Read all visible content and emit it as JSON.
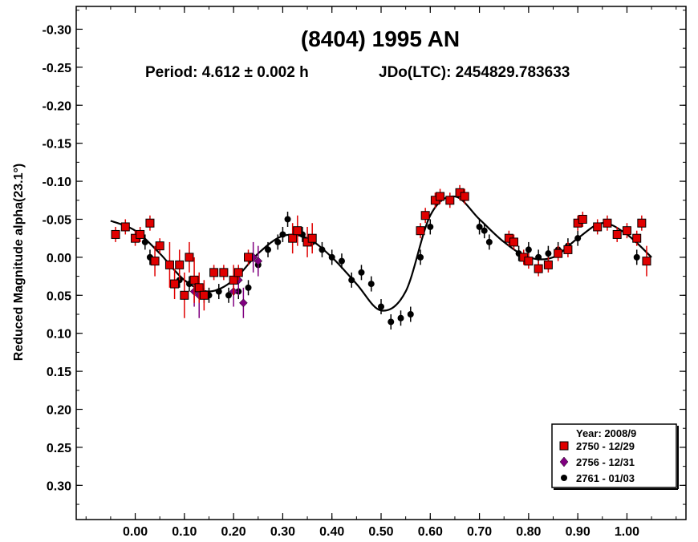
{
  "chart_data": {
    "type": "scatter",
    "title": "(8404) 1995 AN",
    "subtitle_period": "Period: 4.612 ± 0.002 h",
    "subtitle_epoch": "JDo(LTC): 2454829.783633",
    "ylabel": "Reduced Magnitude alpha(23.1°)",
    "xlabel": "",
    "xlim": [
      -0.12,
      1.12
    ],
    "ylim": [
      -0.33,
      0.345
    ],
    "y_inverted": true,
    "x_ticks": [
      "0.00",
      "0.10",
      "0.20",
      "0.30",
      "0.40",
      "0.50",
      "0.60",
      "0.70",
      "0.80",
      "0.90",
      "1.00"
    ],
    "x_tick_values": [
      0.0,
      0.1,
      0.2,
      0.3,
      0.4,
      0.5,
      0.6,
      0.7,
      0.8,
      0.9,
      1.0
    ],
    "y_ticks": [
      "-0.30",
      "-0.25",
      "-0.20",
      "-0.15",
      "-0.10",
      "-0.05",
      "0.00",
      "0.05",
      "0.10",
      "0.15",
      "0.20",
      "0.25",
      "0.30"
    ],
    "y_tick_values": [
      -0.3,
      -0.25,
      -0.2,
      -0.15,
      -0.1,
      -0.05,
      0.0,
      0.05,
      0.1,
      0.15,
      0.2,
      0.25,
      0.3
    ],
    "grid": false,
    "legend": {
      "position": "bottom-right",
      "title": "Year: 2008/9",
      "entries": [
        "2750 - 12/29",
        "2756 - 12/31",
        "2761 - 01/03"
      ]
    },
    "colors": {
      "s2750": "#e00000",
      "s2756": "#800080",
      "s2761": "#000000",
      "curve": "#000000"
    },
    "series": [
      {
        "name": "2750 - 12/29",
        "marker": "square",
        "x": [
          -0.04,
          -0.02,
          0.0,
          0.01,
          0.03,
          0.04,
          0.05,
          0.07,
          0.08,
          0.09,
          0.1,
          0.11,
          0.12,
          0.13,
          0.14,
          0.16,
          0.18,
          0.2,
          0.21,
          0.23,
          0.32,
          0.33,
          0.35,
          0.36,
          0.58,
          0.59,
          0.61,
          0.62,
          0.64,
          0.66,
          0.67,
          0.76,
          0.77,
          0.79,
          0.8,
          0.82,
          0.84,
          0.86,
          0.88,
          0.9,
          0.91,
          0.94,
          0.96,
          0.98,
          1.0,
          1.02,
          1.03,
          1.04
        ],
        "y": [
          -0.03,
          -0.04,
          -0.025,
          -0.03,
          -0.045,
          0.005,
          -0.015,
          0.01,
          0.035,
          0.01,
          0.05,
          0.0,
          0.03,
          0.04,
          0.05,
          0.02,
          0.02,
          0.03,
          0.02,
          0.0,
          -0.025,
          -0.035,
          -0.02,
          -0.025,
          -0.035,
          -0.055,
          -0.075,
          -0.08,
          -0.075,
          -0.085,
          -0.08,
          -0.025,
          -0.02,
          0.0,
          0.005,
          0.015,
          0.01,
          -0.005,
          -0.01,
          -0.045,
          -0.05,
          -0.04,
          -0.045,
          -0.03,
          -0.035,
          -0.025,
          -0.045,
          0.005
        ],
        "err": [
          0.01,
          0.01,
          0.01,
          0.01,
          0.01,
          0.02,
          0.01,
          0.03,
          0.02,
          0.02,
          0.03,
          0.02,
          0.03,
          0.02,
          0.02,
          0.01,
          0.01,
          0.02,
          0.01,
          0.01,
          0.02,
          0.02,
          0.02,
          0.02,
          0.01,
          0.01,
          0.01,
          0.01,
          0.01,
          0.01,
          0.01,
          0.01,
          0.01,
          0.01,
          0.01,
          0.01,
          0.01,
          0.01,
          0.01,
          0.01,
          0.01,
          0.01,
          0.01,
          0.01,
          0.01,
          0.01,
          0.01,
          0.02
        ]
      },
      {
        "name": "2756 - 12/31",
        "marker": "diamond",
        "x": [
          0.12,
          0.13,
          0.2,
          0.21,
          0.22,
          0.24,
          0.25
        ],
        "y": [
          0.045,
          0.05,
          0.045,
          0.03,
          0.06,
          0.0,
          0.005
        ],
        "err": [
          0.02,
          0.03,
          0.02,
          0.02,
          0.02,
          0.02,
          0.02
        ]
      },
      {
        "name": "2761 - 01/03",
        "marker": "circle",
        "x": [
          0.02,
          0.03,
          0.09,
          0.11,
          0.13,
          0.14,
          0.15,
          0.17,
          0.19,
          0.21,
          0.23,
          0.25,
          0.27,
          0.29,
          0.3,
          0.31,
          0.34,
          0.36,
          0.38,
          0.4,
          0.42,
          0.44,
          0.46,
          0.48,
          0.5,
          0.52,
          0.54,
          0.56,
          0.58,
          0.6,
          0.7,
          0.71,
          0.72,
          0.78,
          0.8,
          0.82,
          0.84,
          0.86,
          0.88,
          0.9,
          1.02
        ],
        "y": [
          -0.02,
          0.0,
          0.03,
          0.035,
          0.04,
          0.05,
          0.05,
          0.045,
          0.05,
          0.045,
          0.04,
          0.01,
          -0.01,
          -0.02,
          -0.03,
          -0.05,
          -0.03,
          -0.02,
          -0.01,
          0.0,
          0.005,
          0.03,
          0.02,
          0.035,
          0.065,
          0.085,
          0.08,
          0.075,
          0.0,
          -0.04,
          -0.04,
          -0.035,
          -0.02,
          -0.005,
          -0.01,
          0.0,
          -0.005,
          -0.01,
          -0.015,
          -0.025,
          0.0
        ],
        "err": [
          0.01,
          0.01,
          0.01,
          0.01,
          0.01,
          0.01,
          0.01,
          0.01,
          0.01,
          0.01,
          0.01,
          0.01,
          0.01,
          0.01,
          0.01,
          0.01,
          0.01,
          0.01,
          0.01,
          0.01,
          0.01,
          0.01,
          0.01,
          0.01,
          0.01,
          0.01,
          0.01,
          0.01,
          0.01,
          0.01,
          0.01,
          0.01,
          0.01,
          0.01,
          0.01,
          0.01,
          0.01,
          0.01,
          0.01,
          0.01,
          0.01
        ]
      }
    ],
    "fit_curve": {
      "x": [
        -0.05,
        0.0,
        0.05,
        0.1,
        0.15,
        0.2,
        0.25,
        0.3,
        0.35,
        0.4,
        0.45,
        0.5,
        0.55,
        0.6,
        0.65,
        0.7,
        0.75,
        0.8,
        0.85,
        0.9,
        0.95,
        1.0,
        1.05
      ],
      "y": [
        -0.048,
        -0.035,
        -0.005,
        0.03,
        0.045,
        0.03,
        -0.005,
        -0.028,
        -0.025,
        0.0,
        0.035,
        0.07,
        0.045,
        -0.055,
        -0.08,
        -0.05,
        -0.02,
        0.0,
        0.0,
        -0.025,
        -0.045,
        -0.03,
        0.0
      ]
    }
  }
}
